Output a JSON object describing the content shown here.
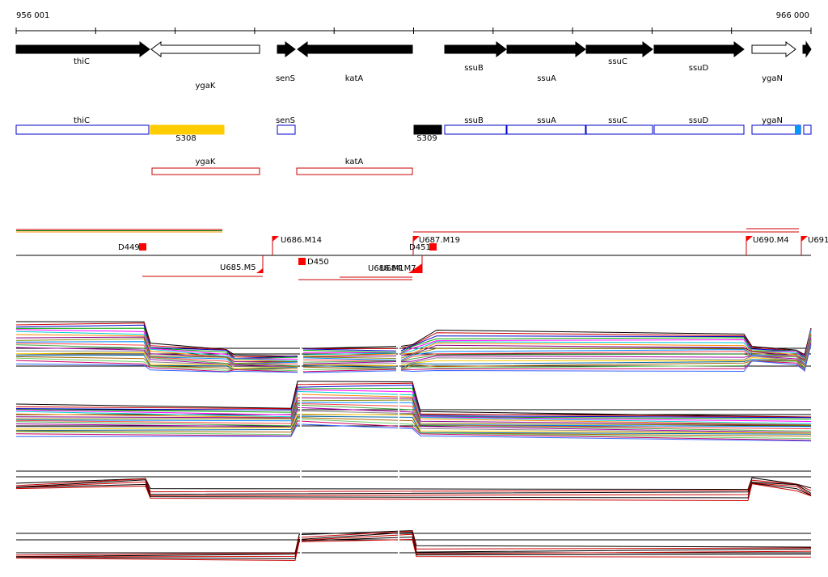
{
  "ruler": {
    "start": "956 001",
    "end": "966 000"
  },
  "genes": [
    "thiC",
    "ygaK",
    "senS",
    "katA",
    "ssuB",
    "ssuA",
    "ssuC",
    "ssuD",
    "ygaN"
  ],
  "segments": [
    "thiC",
    "S308",
    "senS",
    "S309",
    "ssuB",
    "ssuA",
    "ssuC",
    "ssuD",
    "ygaN"
  ],
  "antisense": [
    "ygaK",
    "katA"
  ],
  "markers": [
    "D449",
    "U686.M14",
    "U687.M19",
    "D451",
    "U690.M4",
    "U691",
    "U685.M5",
    "D450",
    "U686.M1",
    "U684.M7"
  ]
}
